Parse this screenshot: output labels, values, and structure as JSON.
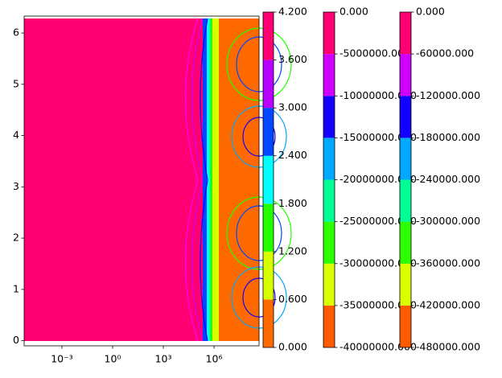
{
  "chart_data": [
    {
      "type": "contour",
      "xscale": "log",
      "xlim": [
        5.8e-06,
        460000000
      ],
      "ylim": [
        -0.1,
        6.33
      ],
      "xticks": [
        {
          "value": 0.001,
          "label": "10⁻³"
        },
        {
          "value": 1,
          "label": "10⁰"
        },
        {
          "value": 1000,
          "label": "10³"
        },
        {
          "value": 1000000,
          "label": "10⁶"
        }
      ],
      "yticks": [
        0,
        1,
        2,
        3,
        4,
        5,
        6
      ]
    },
    {
      "type": "colorbar",
      "ylim": [
        0,
        4.2
      ],
      "yticks": [
        {
          "value": 0,
          "label": "0.000"
        },
        {
          "value": 0.6,
          "label": "0.600"
        },
        {
          "value": 1.2,
          "label": "1.200"
        },
        {
          "value": 1.8,
          "label": "1.800"
        },
        {
          "value": 2.4,
          "label": "2.400"
        },
        {
          "value": 3,
          "label": "3.000"
        },
        {
          "value": 3.6,
          "label": "3.600"
        },
        {
          "value": 4.2,
          "label": "4.200"
        }
      ],
      "colors": [
        "#ff6a00",
        "#d8ff00",
        "#22ff00",
        "#00ffff",
        "#0047ff",
        "#b800ff",
        "#ff0073"
      ]
    },
    {
      "type": "colorbar",
      "ylim": [
        -40000000,
        0
      ],
      "yticks": [
        {
          "value": -40000000,
          "label": "-40000000.000"
        },
        {
          "value": -35000000,
          "label": "-35000000.000"
        },
        {
          "value": -30000000,
          "label": "-30000000.000"
        },
        {
          "value": -25000000,
          "label": "-25000000.000"
        },
        {
          "value": -20000000,
          "label": "-20000000.000"
        },
        {
          "value": -15000000,
          "label": "-15000000.000"
        },
        {
          "value": -10000000,
          "label": "-10000000.000"
        },
        {
          "value": -5000000,
          "label": "-5000000.000"
        },
        {
          "value": 0,
          "label": "0.000"
        }
      ],
      "colors": [
        "#ff5a00",
        "#dcff00",
        "#2cff00",
        "#00ff96",
        "#00a8ff",
        "#1400ff",
        "#d000ff",
        "#ff0073"
      ]
    },
    {
      "type": "colorbar",
      "ylim": [
        -480000,
        0
      ],
      "yticks": [
        {
          "value": -480000,
          "label": "-480000.000"
        },
        {
          "value": -420000,
          "label": "-420000.000"
        },
        {
          "value": -360000,
          "label": "-360000.000"
        },
        {
          "value": -300000,
          "label": "-300000.000"
        },
        {
          "value": -240000,
          "label": "-240000.000"
        },
        {
          "value": -180000,
          "label": "-180000.000"
        },
        {
          "value": -120000,
          "label": "-120000.000"
        },
        {
          "value": -60000,
          "label": "-60000.000"
        },
        {
          "value": 0,
          "label": "0.000"
        }
      ],
      "colors": [
        "#ff5a00",
        "#dcff00",
        "#2cff00",
        "#00ff96",
        "#00a8ff",
        "#1400ff",
        "#d000ff",
        "#ff0073"
      ]
    }
  ]
}
